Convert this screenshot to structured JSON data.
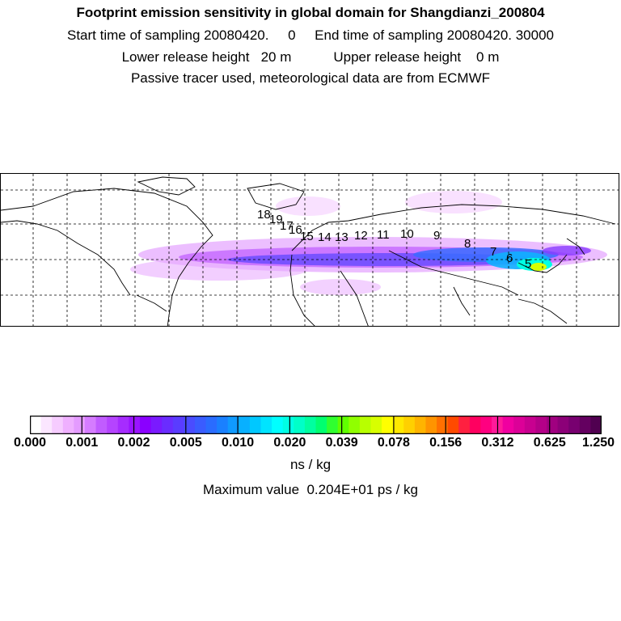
{
  "header": {
    "title": "Footprint emission sensitivity in global domain for Shangdianzi_200804",
    "line2": "Start time of sampling 20080420.     0     End time of sampling 20080420. 30000",
    "line3": "Lower release height   20 m           Upper release height    0 m",
    "line4": "Passive tracer used, meteorological data are from ECMWF"
  },
  "map": {
    "day_labels": [
      "18",
      "19",
      "17",
      "16",
      "15",
      "14",
      "13",
      "12",
      "11",
      "10",
      "9",
      "8",
      "7",
      "6",
      "5"
    ],
    "grid": "dashed lat/lon grid"
  },
  "colorbar": {
    "tick_labels": [
      "0.000",
      "0.001",
      "0.002",
      "0.005",
      "0.010",
      "0.020",
      "0.039",
      "0.078",
      "0.156",
      "0.312",
      "0.625",
      "1.250"
    ],
    "colors": [
      "#ffffff",
      "#fbe6ff",
      "#f6ccff",
      "#efb0ff",
      "#e49bff",
      "#d57cff",
      "#c15cff",
      "#b544ff",
      "#a62cff",
      "#9a14ff",
      "#8a00ff",
      "#7a1aff",
      "#6a2cff",
      "#5a3cff",
      "#4a4cff",
      "#3a5cff",
      "#2a6cff",
      "#1a80ff",
      "#109aff",
      "#08b0ff",
      "#00c8ff",
      "#00e4ff",
      "#00ffff",
      "#00ffe4",
      "#00ffc8",
      "#00ffa0",
      "#00ff70",
      "#30ff30",
      "#60ff00",
      "#90ff00",
      "#b8ff00",
      "#d8ff00",
      "#ffff00",
      "#ffe800",
      "#ffd000",
      "#ffb400",
      "#ff9400",
      "#ff7000",
      "#ff4a00",
      "#ff2040",
      "#ff0060",
      "#ff0080",
      "#ff1a9a",
      "#f000a0",
      "#dc0098",
      "#c80090",
      "#b40088",
      "#a00080",
      "#8c0078",
      "#780070",
      "#640060",
      "#500050"
    ],
    "units": "ns / kg",
    "max_value": "Maximum value  0.204E+01 ps / kg"
  }
}
